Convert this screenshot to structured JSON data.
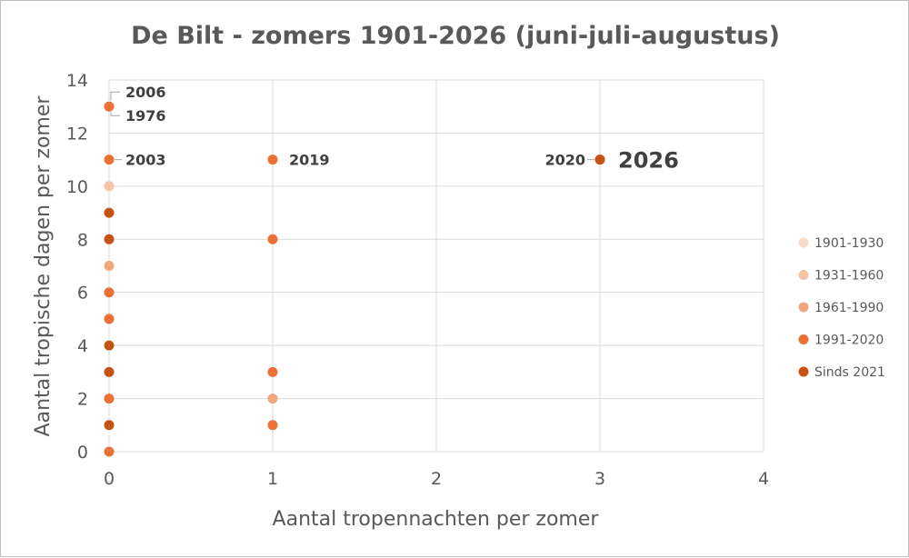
{
  "chart_data": {
    "type": "scatter",
    "title": "De Bilt - zomers 1901-2026 (juni-juli-augustus)",
    "xlabel": "Aantal tropennachten per zomer",
    "ylabel": "Aantal tropische dagen per zomer",
    "xlim": [
      0,
      4
    ],
    "ylim": [
      0,
      14
    ],
    "x_ticks": [
      0,
      1,
      2,
      3,
      4
    ],
    "y_ticks": [
      0,
      2,
      4,
      6,
      8,
      10,
      12,
      14
    ],
    "grid": true,
    "legend_position": "right",
    "series": [
      {
        "name": "1901-1930",
        "color": "#f9dcc8",
        "points": []
      },
      {
        "name": "1931-1960",
        "color": "#f6c3a4",
        "points": [
          {
            "x": 0,
            "y": 10
          }
        ]
      },
      {
        "name": "1961-1990",
        "color": "#f0a67c",
        "points": [
          {
            "x": 0,
            "y": 7
          },
          {
            "x": 1,
            "y": 2
          }
        ]
      },
      {
        "name": "1991-2020",
        "color": "#eb7036",
        "points": [
          {
            "x": 0,
            "y": 13
          },
          {
            "x": 0,
            "y": 11
          },
          {
            "x": 0,
            "y": 6
          },
          {
            "x": 0,
            "y": 5
          },
          {
            "x": 0,
            "y": 2
          },
          {
            "x": 0,
            "y": 0
          },
          {
            "x": 1,
            "y": 11
          },
          {
            "x": 1,
            "y": 8
          },
          {
            "x": 1,
            "y": 3
          },
          {
            "x": 1,
            "y": 1
          },
          {
            "x": 3,
            "y": 11
          }
        ]
      },
      {
        "name": "Sinds 2021",
        "color": "#c65214",
        "points": [
          {
            "x": 0,
            "y": 9
          },
          {
            "x": 0,
            "y": 8
          },
          {
            "x": 0,
            "y": 4
          },
          {
            "x": 0,
            "y": 3
          },
          {
            "x": 0,
            "y": 1
          },
          {
            "x": 3,
            "y": 11
          }
        ]
      }
    ],
    "annotations": [
      {
        "text": "2006",
        "x": 0,
        "y": 13,
        "position": "upper-right",
        "size": "normal"
      },
      {
        "text": "1976",
        "x": 0,
        "y": 13,
        "position": "lower-right",
        "size": "normal"
      },
      {
        "text": "2003",
        "x": 0,
        "y": 11,
        "position": "right",
        "size": "normal"
      },
      {
        "text": "2019",
        "x": 1,
        "y": 11,
        "position": "right",
        "size": "normal"
      },
      {
        "text": "2020",
        "x": 3,
        "y": 11,
        "position": "left",
        "size": "normal"
      },
      {
        "text": "2026",
        "x": 3,
        "y": 11,
        "position": "right",
        "size": "large"
      }
    ]
  }
}
